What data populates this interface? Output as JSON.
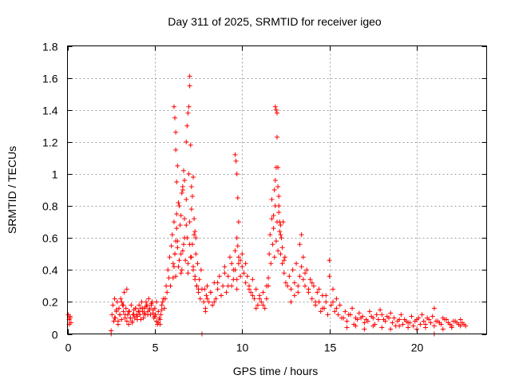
{
  "chart_data": {
    "type": "scatter",
    "title": "Day 311 of 2025, SRMTID for receiver igeo",
    "xlabel": "GPS time / hours",
    "ylabel": "SRMTID / TECUs",
    "xlim": [
      0,
      24
    ],
    "ylim": [
      0,
      1.8
    ],
    "xticks": [
      0,
      5,
      10,
      15,
      20
    ],
    "xtick_labels": [
      "0",
      "5",
      "10",
      "15",
      "20"
    ],
    "yticks": [
      0,
      0.2,
      0.4,
      0.6,
      0.8,
      1.0,
      1.2,
      1.4,
      1.6,
      1.8
    ],
    "ytick_labels": [
      "0",
      "0.2",
      "0.4",
      "0.6",
      "0.8",
      "1",
      "1.2",
      "1.4",
      "1.6",
      "1.8"
    ],
    "grid": true,
    "marker": "+",
    "series": [
      {
        "name": "igeo",
        "color": "#ff0000",
        "x": [
          0.05,
          0.1,
          0.15,
          0.2,
          0.1,
          0.15,
          2.5,
          2.55,
          2.6,
          2.65,
          2.7,
          2.75,
          2.8,
          2.85,
          2.9,
          2.95,
          3.0,
          3.05,
          3.1,
          3.15,
          3.2,
          3.25,
          3.3,
          3.35,
          3.4,
          3.45,
          3.5,
          3.55,
          3.6,
          3.65,
          3.7,
          3.75,
          3.8,
          3.85,
          3.9,
          3.95,
          4.0,
          4.05,
          4.1,
          4.15,
          4.2,
          4.25,
          4.3,
          4.35,
          4.4,
          4.45,
          4.5,
          4.55,
          4.6,
          4.65,
          4.7,
          4.75,
          4.8,
          4.85,
          4.9,
          4.95,
          5.0,
          5.05,
          5.1,
          5.15,
          5.2,
          5.25,
          5.3,
          5.35,
          5.4,
          5.45,
          5.5,
          5.55,
          2.7,
          2.8,
          2.9,
          3.0,
          3.1,
          3.2,
          3.3,
          3.4,
          3.5,
          3.6,
          3.7,
          3.8,
          3.9,
          4.0,
          4.1,
          4.2,
          4.3,
          4.4,
          4.5,
          4.6,
          4.7,
          4.8,
          4.9,
          5.0,
          5.1,
          5.2,
          5.3,
          5.4,
          5.6,
          5.65,
          5.7,
          5.75,
          5.8,
          5.85,
          5.9,
          5.95,
          6.0,
          6.05,
          6.1,
          6.15,
          6.2,
          6.25,
          6.3,
          6.35,
          6.4,
          6.45,
          6.5,
          6.55,
          6.6,
          6.65,
          6.7,
          6.75,
          6.8,
          6.85,
          6.9,
          6.95,
          7.0,
          7.05,
          7.1,
          7.15,
          7.2,
          7.25,
          7.3,
          7.35,
          7.4,
          7.45,
          7.5,
          7.55,
          7.6,
          7.65,
          7.7,
          6.1,
          6.15,
          6.2,
          6.2,
          6.25,
          6.3,
          6.35,
          6.5,
          6.55,
          6.6,
          6.65,
          6.7,
          6.8,
          6.85,
          6.9,
          6.95,
          7.0,
          7.0,
          7.05,
          7.1,
          7.15,
          7.2,
          7.25,
          7.3,
          7.35,
          6.05,
          6.1,
          6.15,
          6.2,
          6.25,
          6.3,
          6.4,
          6.5,
          6.6,
          6.7,
          6.8,
          6.9,
          7.0,
          7.1,
          7.2,
          7.3,
          7.4,
          7.5,
          7.8,
          7.85,
          7.9,
          7.95,
          8.0,
          8.1,
          8.2,
          8.3,
          8.4,
          8.5,
          8.6,
          8.7,
          8.8,
          8.9,
          9.0,
          9.1,
          9.2,
          9.3,
          9.4,
          9.5,
          9.6,
          9.7,
          9.8,
          9.9,
          10.0,
          10.1,
          10.2,
          10.3,
          10.4,
          10.5,
          10.6,
          10.7,
          10.8,
          10.9,
          11.0,
          11.1,
          11.2,
          11.3,
          11.4,
          11.5,
          7.9,
          8.0,
          8.2,
          8.4,
          8.6,
          8.8,
          9.0,
          9.2,
          9.4,
          9.5,
          9.6,
          9.7,
          9.8,
          9.9,
          10.0,
          10.2,
          10.4,
          10.6,
          10.8,
          11.0,
          11.2,
          11.4,
          9.6,
          9.65,
          9.7,
          9.75,
          9.8,
          9.7,
          9.75,
          11.5,
          11.55,
          11.6,
          11.65,
          11.7,
          11.75,
          11.8,
          11.85,
          11.9,
          11.95,
          12.0,
          12.05,
          12.1,
          12.15,
          12.2,
          12.25,
          12.3,
          12.35,
          12.4,
          12.45,
          12.5,
          11.7,
          11.8,
          11.85,
          11.9,
          11.95,
          12.0,
          12.05,
          12.1,
          12.15,
          12.2,
          12.3,
          12.4,
          11.9,
          11.95,
          12.0,
          12.05,
          12.1,
          12.2,
          12.6,
          12.7,
          12.8,
          12.9,
          13.0,
          13.1,
          13.2,
          13.3,
          13.4,
          13.5,
          13.6,
          13.7,
          13.8,
          13.9,
          14.0,
          14.1,
          14.2,
          14.3,
          14.4,
          14.5,
          14.6,
          14.7,
          14.8,
          14.9,
          15.0,
          15.1,
          15.2,
          15.3,
          15.4,
          15.5,
          15.6,
          15.7,
          12.8,
          13.0,
          13.2,
          13.3,
          13.4,
          13.5,
          13.6,
          13.8,
          14.0,
          14.2,
          14.4,
          14.6,
          14.8,
          15.0,
          15.2,
          15.4,
          15.8,
          16.0,
          16.2,
          16.4,
          16.6,
          16.8,
          17.0,
          17.2,
          17.4,
          17.6,
          17.8,
          18.0,
          18.2,
          18.4,
          18.6,
          18.8,
          19.0,
          19.2,
          19.4,
          19.6,
          19.8,
          20.0,
          20.2,
          20.4,
          20.6,
          20.8,
          21.0,
          21.2,
          21.4,
          21.6,
          21.8,
          22.0,
          22.2,
          22.4,
          22.6,
          22.8,
          15.9,
          16.1,
          16.3,
          16.5,
          16.7,
          16.9,
          17.1,
          17.3,
          17.5,
          17.7,
          17.9,
          18.1,
          18.3,
          18.5,
          18.7,
          18.9,
          19.1,
          19.3,
          19.5,
          19.7,
          19.9,
          20.1,
          20.3,
          20.5,
          20.7,
          20.9,
          21.1,
          21.3,
          21.5,
          21.7,
          21.9,
          22.1,
          22.3,
          22.5,
          22.7,
          16.0,
          16.5,
          17.0,
          17.5,
          18.0,
          18.5,
          19.0,
          19.5,
          20.0,
          20.5,
          21.0,
          21.5,
          22.0,
          22.5,
          2.5,
          7.7,
          21.0
        ],
        "y": [
          0.12,
          0.09,
          0.11,
          0.07,
          0.06,
          0.1,
          0.02,
          0.12,
          0.18,
          0.08,
          0.22,
          0.1,
          0.14,
          0.2,
          0.06,
          0.16,
          0.12,
          0.22,
          0.09,
          0.18,
          0.14,
          0.26,
          0.1,
          0.16,
          0.08,
          0.12,
          0.06,
          0.14,
          0.1,
          0.18,
          0.08,
          0.12,
          0.15,
          0.1,
          0.16,
          0.12,
          0.09,
          0.14,
          0.18,
          0.12,
          0.16,
          0.2,
          0.14,
          0.1,
          0.16,
          0.12,
          0.2,
          0.18,
          0.14,
          0.22,
          0.16,
          0.12,
          0.18,
          0.2,
          0.15,
          0.1,
          0.16,
          0.12,
          0.08,
          0.06,
          0.14,
          0.1,
          0.06,
          0.12,
          0.18,
          0.2,
          0.22,
          0.16,
          0.1,
          0.15,
          0.08,
          0.12,
          0.2,
          0.18,
          0.12,
          0.28,
          0.14,
          0.1,
          0.07,
          0.12,
          0.16,
          0.11,
          0.14,
          0.09,
          0.16,
          0.13,
          0.17,
          0.12,
          0.15,
          0.19,
          0.13,
          0.11,
          0.2,
          0.07,
          0.09,
          0.15,
          0.22,
          0.3,
          0.26,
          0.4,
          0.35,
          0.48,
          0.3,
          0.55,
          0.62,
          0.44,
          0.7,
          0.5,
          0.36,
          0.75,
          0.58,
          0.42,
          0.8,
          0.68,
          0.5,
          0.4,
          0.92,
          0.56,
          0.72,
          0.46,
          0.84,
          0.6,
          0.38,
          1.0,
          0.7,
          0.48,
          0.78,
          0.56,
          0.42,
          0.62,
          0.36,
          0.5,
          0.3,
          0.44,
          0.26,
          0.34,
          0.22,
          0.4,
          0.28,
          1.42,
          1.35,
          1.26,
          1.15,
          0.95,
          1.05,
          0.82,
          0.74,
          0.88,
          0.9,
          1.02,
          0.96,
          1.2,
          1.3,
          1.38,
          1.42,
          1.55,
          1.61,
          1.18,
          0.92,
          0.86,
          0.98,
          0.72,
          0.64,
          0.6,
          0.35,
          0.42,
          0.5,
          0.58,
          0.66,
          0.54,
          0.46,
          0.38,
          0.52,
          0.6,
          0.68,
          0.44,
          0.56,
          0.48,
          0.4,
          0.34,
          0.3,
          0.28,
          0.2,
          0.28,
          0.16,
          0.24,
          0.3,
          0.2,
          0.26,
          0.18,
          0.32,
          0.22,
          0.28,
          0.36,
          0.24,
          0.3,
          0.42,
          0.26,
          0.36,
          0.48,
          0.3,
          0.4,
          0.52,
          0.34,
          0.44,
          0.46,
          0.5,
          0.38,
          0.44,
          0.36,
          0.3,
          0.26,
          0.34,
          0.22,
          0.28,
          0.18,
          0.24,
          0.2,
          0.26,
          0.16,
          0.22,
          0.3,
          0.14,
          0.22,
          0.26,
          0.2,
          0.32,
          0.24,
          0.38,
          0.3,
          0.44,
          0.34,
          0.4,
          0.28,
          0.48,
          0.36,
          0.42,
          0.32,
          0.28,
          0.24,
          0.16,
          0.22,
          0.18,
          0.3,
          1.12,
          1.08,
          1.0,
          0.85,
          0.7,
          0.6,
          0.55,
          0.35,
          0.5,
          0.62,
          0.44,
          0.72,
          0.56,
          0.66,
          0.48,
          0.8,
          0.58,
          0.7,
          0.52,
          0.76,
          0.64,
          0.5,
          0.6,
          0.44,
          0.7,
          0.38,
          0.48,
          0.32,
          0.84,
          0.74,
          0.9,
          0.96,
          1.04,
          1.23,
          0.92,
          0.8,
          0.7,
          0.62,
          0.54,
          0.46,
          1.42,
          1.4,
          1.38,
          1.04,
          0.86,
          0.68,
          0.3,
          0.36,
          0.28,
          0.4,
          0.32,
          0.44,
          0.26,
          0.36,
          0.62,
          0.48,
          0.3,
          0.4,
          0.28,
          0.34,
          0.22,
          0.3,
          0.18,
          0.26,
          0.2,
          0.14,
          0.24,
          0.16,
          0.2,
          0.12,
          0.46,
          0.18,
          0.28,
          0.14,
          0.22,
          0.12,
          0.18,
          0.1,
          0.2,
          0.24,
          0.3,
          0.56,
          0.42,
          0.34,
          0.38,
          0.26,
          0.32,
          0.2,
          0.28,
          0.16,
          0.24,
          0.36,
          0.2,
          0.16,
          0.1,
          0.08,
          0.12,
          0.06,
          0.09,
          0.1,
          0.07,
          0.08,
          0.11,
          0.06,
          0.09,
          0.12,
          0.08,
          0.1,
          0.07,
          0.05,
          0.09,
          0.06,
          0.08,
          0.07,
          0.05,
          0.09,
          0.06,
          0.08,
          0.1,
          0.07,
          0.05,
          0.08,
          0.06,
          0.09,
          0.07,
          0.05,
          0.08,
          0.06,
          0.07,
          0.05,
          0.14,
          0.12,
          0.16,
          0.1,
          0.13,
          0.11,
          0.09,
          0.14,
          0.1,
          0.12,
          0.15,
          0.09,
          0.11,
          0.13,
          0.1,
          0.08,
          0.12,
          0.09,
          0.07,
          0.11,
          0.08,
          0.1,
          0.12,
          0.06,
          0.09,
          0.11,
          0.08,
          0.07,
          0.1,
          0.09,
          0.06,
          0.08,
          0.07,
          0.09,
          0.06,
          0.04,
          0.05,
          0.03,
          0.05,
          0.04,
          0.03,
          0.05,
          0.04,
          0.03,
          0.04,
          0.16,
          0.03,
          0.04,
          0.05,
          0.0,
          0.0,
          0.0
        ]
      }
    ]
  }
}
